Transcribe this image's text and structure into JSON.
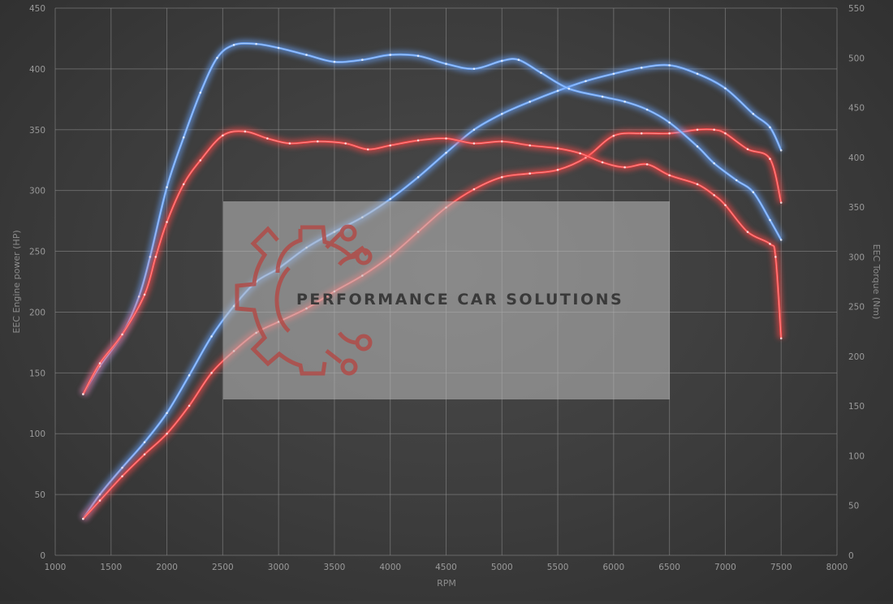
{
  "chart_data": {
    "type": "line",
    "xlabel": "RPM",
    "ylabel_left": "EEC Engine power (HP)",
    "ylabel_right": "EEC Torque (Nm)",
    "xlim": [
      1000,
      8000
    ],
    "ylim_left": [
      0,
      450
    ],
    "ylim_right": [
      0,
      550
    ],
    "x_ticks": [
      1000,
      1500,
      2000,
      2500,
      3000,
      3500,
      4000,
      4500,
      5000,
      5500,
      6000,
      6500,
      7000,
      7500,
      8000
    ],
    "y_ticks_left": [
      0,
      50,
      100,
      150,
      200,
      250,
      300,
      350,
      400,
      450
    ],
    "y_ticks_right": [
      0,
      50,
      100,
      150,
      200,
      250,
      300,
      350,
      400,
      450,
      500,
      550
    ],
    "grid": true,
    "colors": {
      "blue": "#6aa6ff",
      "red": "#ff4848"
    },
    "series": [
      {
        "color": "blue",
        "axis": "left",
        "points": [
          [
            1250,
            30
          ],
          [
            1400,
            50
          ],
          [
            1600,
            72
          ],
          [
            1800,
            93
          ],
          [
            2000,
            117
          ],
          [
            2200,
            148
          ],
          [
            2400,
            180
          ],
          [
            2600,
            205
          ],
          [
            2800,
            225
          ],
          [
            3000,
            236
          ],
          [
            3250,
            253
          ],
          [
            3500,
            266
          ],
          [
            3750,
            278
          ],
          [
            4000,
            293
          ],
          [
            4250,
            311
          ],
          [
            4500,
            331
          ],
          [
            4750,
            350
          ],
          [
            5000,
            363
          ],
          [
            5250,
            373
          ],
          [
            5500,
            382
          ],
          [
            5750,
            390
          ],
          [
            6000,
            396
          ],
          [
            6250,
            401
          ],
          [
            6500,
            403
          ],
          [
            6750,
            396
          ],
          [
            7000,
            384
          ],
          [
            7250,
            363
          ],
          [
            7400,
            352
          ],
          [
            7500,
            333
          ]
        ]
      },
      {
        "color": "red",
        "axis": "left",
        "points": [
          [
            1250,
            30
          ],
          [
            1400,
            45
          ],
          [
            1600,
            65
          ],
          [
            1800,
            83
          ],
          [
            2000,
            100
          ],
          [
            2200,
            123
          ],
          [
            2400,
            150
          ],
          [
            2600,
            168
          ],
          [
            2800,
            183
          ],
          [
            3000,
            192
          ],
          [
            3250,
            203
          ],
          [
            3500,
            217
          ],
          [
            3750,
            230
          ],
          [
            4000,
            246
          ],
          [
            4250,
            266
          ],
          [
            4500,
            286
          ],
          [
            4750,
            301
          ],
          [
            5000,
            311
          ],
          [
            5250,
            314
          ],
          [
            5500,
            317
          ],
          [
            5750,
            327
          ],
          [
            6000,
            345
          ],
          [
            6250,
            347
          ],
          [
            6500,
            347
          ],
          [
            6750,
            350
          ],
          [
            6900,
            350
          ],
          [
            7000,
            347
          ],
          [
            7200,
            334
          ],
          [
            7400,
            326
          ],
          [
            7500,
            290
          ]
        ]
      },
      {
        "color": "blue",
        "axis": "right",
        "points": [
          [
            1250,
            162
          ],
          [
            1400,
            190
          ],
          [
            1600,
            222
          ],
          [
            1750,
            260
          ],
          [
            1850,
            300
          ],
          [
            2000,
            370
          ],
          [
            2150,
            420
          ],
          [
            2300,
            465
          ],
          [
            2450,
            500
          ],
          [
            2600,
            513
          ],
          [
            2800,
            514
          ],
          [
            3000,
            510
          ],
          [
            3250,
            503
          ],
          [
            3500,
            496
          ],
          [
            3750,
            498
          ],
          [
            4000,
            503
          ],
          [
            4250,
            502
          ],
          [
            4500,
            494
          ],
          [
            4750,
            489
          ],
          [
            5000,
            497
          ],
          [
            5150,
            498
          ],
          [
            5350,
            485
          ],
          [
            5600,
            469
          ],
          [
            5900,
            461
          ],
          [
            6100,
            456
          ],
          [
            6300,
            448
          ],
          [
            6500,
            435
          ],
          [
            6750,
            411
          ],
          [
            6900,
            394
          ],
          [
            7100,
            377
          ],
          [
            7250,
            365
          ],
          [
            7400,
            337
          ],
          [
            7500,
            317
          ]
        ]
      },
      {
        "color": "red",
        "axis": "right",
        "points": [
          [
            1250,
            162
          ],
          [
            1400,
            193
          ],
          [
            1600,
            222
          ],
          [
            1800,
            262
          ],
          [
            1900,
            300
          ],
          [
            2000,
            335
          ],
          [
            2150,
            373
          ],
          [
            2300,
            397
          ],
          [
            2500,
            422
          ],
          [
            2700,
            426
          ],
          [
            2900,
            419
          ],
          [
            3100,
            414
          ],
          [
            3350,
            416
          ],
          [
            3600,
            414
          ],
          [
            3800,
            408
          ],
          [
            4000,
            412
          ],
          [
            4250,
            417
          ],
          [
            4500,
            419
          ],
          [
            4750,
            414
          ],
          [
            5000,
            416
          ],
          [
            5250,
            412
          ],
          [
            5500,
            409
          ],
          [
            5700,
            404
          ],
          [
            5900,
            395
          ],
          [
            6100,
            390
          ],
          [
            6300,
            393
          ],
          [
            6500,
            382
          ],
          [
            6750,
            373
          ],
          [
            6900,
            362
          ],
          [
            7000,
            352
          ],
          [
            7200,
            325
          ],
          [
            7400,
            313
          ],
          [
            7450,
            300
          ],
          [
            7500,
            218
          ]
        ]
      }
    ]
  },
  "watermark": {
    "text": "PERFORMANCE CAR SOLUTIONS"
  }
}
